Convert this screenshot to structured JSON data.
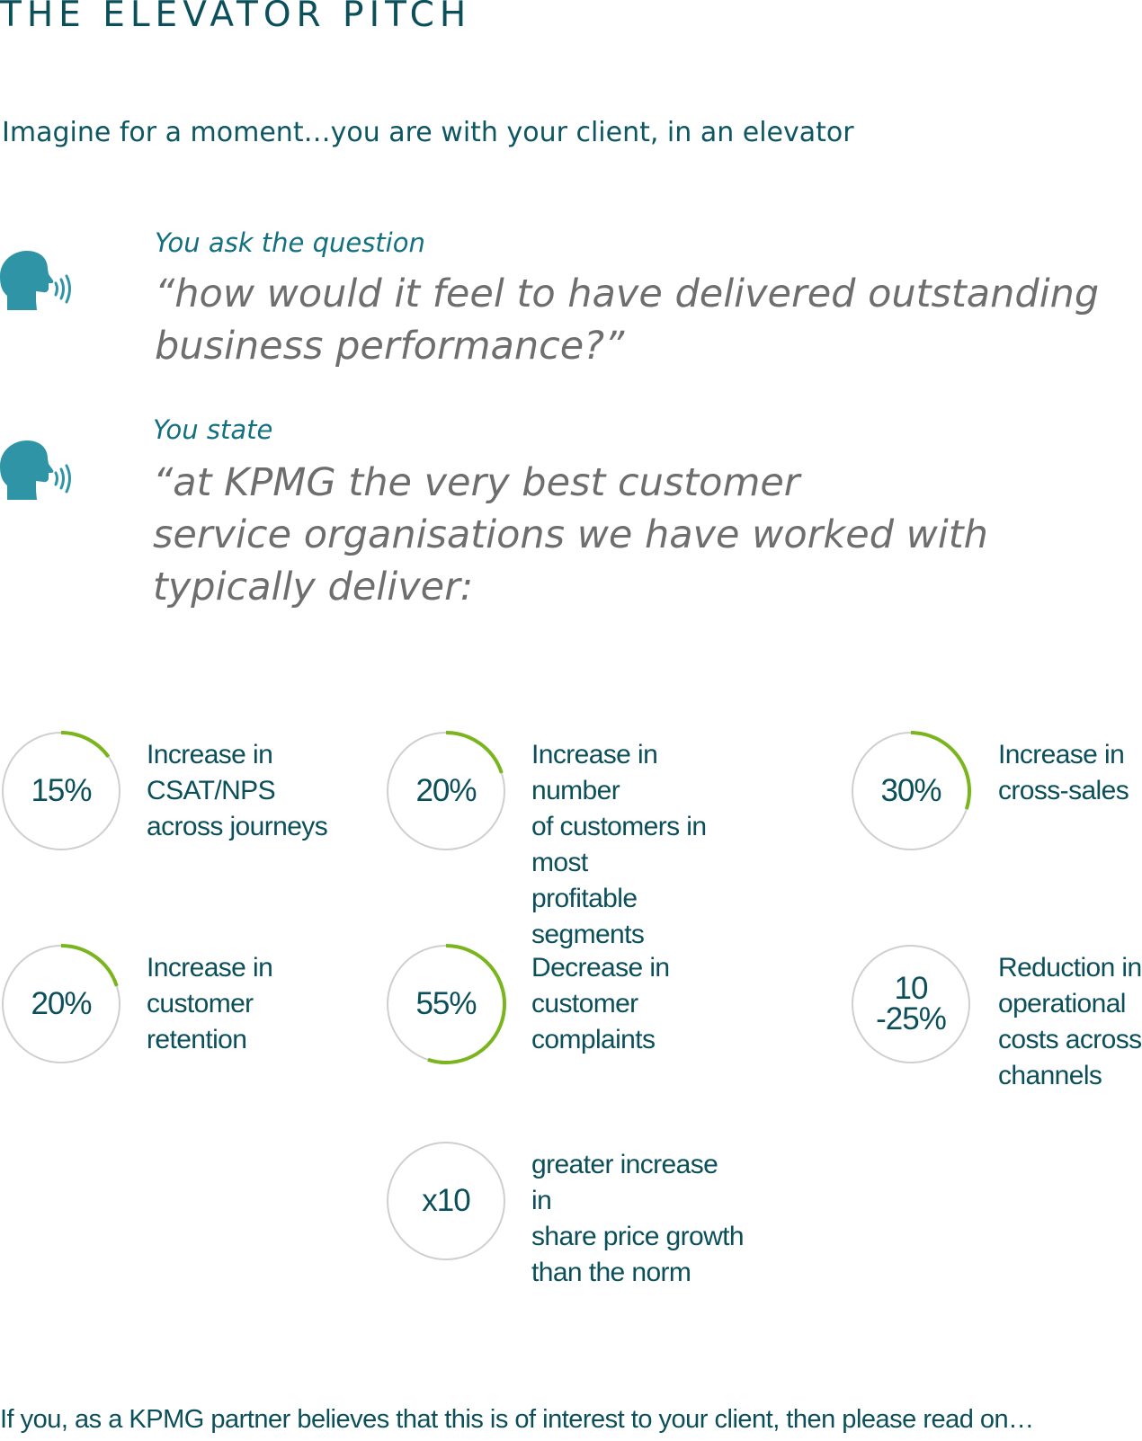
{
  "title": "THE ELEVATOR PITCH",
  "subtitle": "Imagine for a moment…you are with your client, in an elevator",
  "colors": {
    "primary_text": "#0b4f5a",
    "icon": "#2f95a6",
    "quote_text": "#6e6e6e",
    "ring_track": "#cfcfcf",
    "ring_progress": "#7ab51d"
  },
  "icons": [
    "speaking-head-icon"
  ],
  "ask": {
    "lead": "You ask the question",
    "quote_line1": "“how would it feel to have delivered outstanding",
    "quote_line2": "business performance?”"
  },
  "state": {
    "lead": "You state",
    "quote_line1": "“at KPMG the very best customer",
    "quote_line2": "service organisations we have worked with",
    "quote_line3": "typically deliver:"
  },
  "stats": [
    {
      "value": "15%",
      "label": "Increase in\nCSAT/NPS\nacross journeys",
      "fill_percent": 15
    },
    {
      "value": "20%",
      "label": "Increase in number\nof customers in most\nprofitable segments",
      "fill_percent": 20
    },
    {
      "value": "30%",
      "label": "Increase in\ncross-sales",
      "fill_percent": 30
    },
    {
      "value": "20%",
      "label": "Increase in\ncustomer\nretention",
      "fill_percent": 20
    },
    {
      "value": "55%",
      "label": "Decrease in customer\ncomplaints",
      "fill_percent": 55
    },
    {
      "value": "10\n-25%",
      "label": "Reduction in\noperational\ncosts across\nchannels",
      "fill_percent": 0
    },
    {
      "value": "x10",
      "label": "greater increase in\nshare price growth\nthan the norm",
      "fill_percent": 0
    }
  ],
  "footer": "If you, as a KPMG partner believes that this is of interest to your client, then please read on…"
}
